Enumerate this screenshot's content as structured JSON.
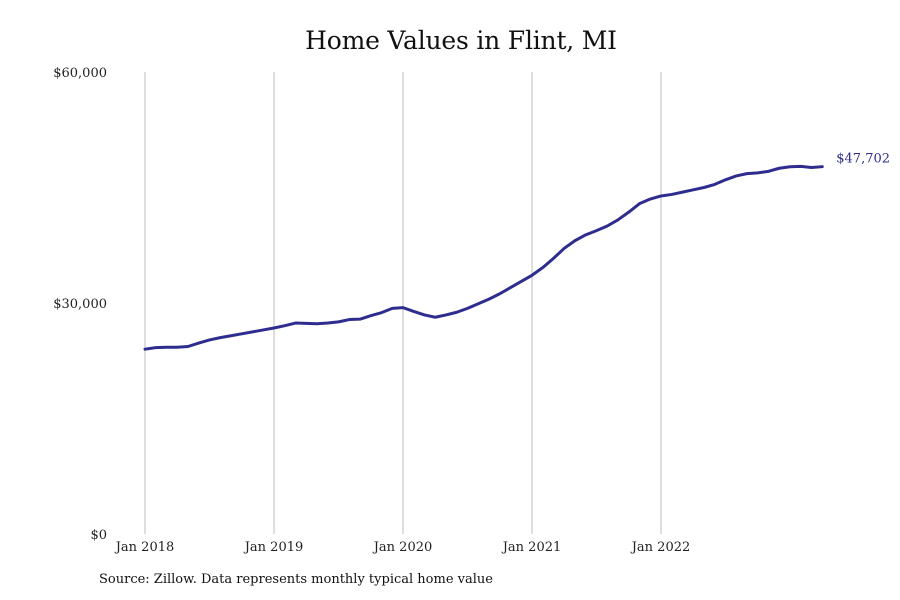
{
  "title": "Home Values in Flint, MI",
  "source": "Source: Zillow. Data represents monthly typical home value",
  "chart_data": {
    "type": "line",
    "title": "Home Values in Flint, MI",
    "xlabel": "",
    "ylabel": "",
    "grid": "vertical",
    "line_color": "#2e2d8f",
    "y_ticks": [
      {
        "value": 60000,
        "label": "$60,000"
      },
      {
        "value": 30000,
        "label": "$30,000"
      },
      {
        "value": 0,
        "label": "$0"
      }
    ],
    "x_ticks": [
      {
        "value": 0,
        "label": "Jan 2018"
      },
      {
        "value": 12,
        "label": "Jan 2019"
      },
      {
        "value": 24,
        "label": "Jan 2020"
      },
      {
        "value": 36,
        "label": "Jan 2021"
      },
      {
        "value": 48,
        "label": "Jan 2022"
      }
    ],
    "ylim": [
      0,
      60000
    ],
    "end_label": "$47,702",
    "series": [
      {
        "values": [
          24000,
          24200,
          24250,
          24250,
          24350,
          24800,
          25200,
          25500,
          25750,
          26000,
          26250,
          26500,
          26750,
          27050,
          27400,
          27350,
          27300,
          27400,
          27550,
          27850,
          27900,
          28350,
          28750,
          29300,
          29400,
          28900,
          28450,
          28150,
          28450,
          28800,
          29300,
          29900,
          30500,
          31200,
          32000,
          32800,
          33600,
          34600,
          35800,
          37100,
          38100,
          38850,
          39400,
          40000,
          40800,
          41800,
          42900,
          43500,
          43900,
          44100,
          44400,
          44700,
          45000,
          45400,
          46000,
          46500,
          46800,
          46900,
          47100,
          47500,
          47700,
          47750,
          47600,
          47702
        ]
      }
    ]
  }
}
